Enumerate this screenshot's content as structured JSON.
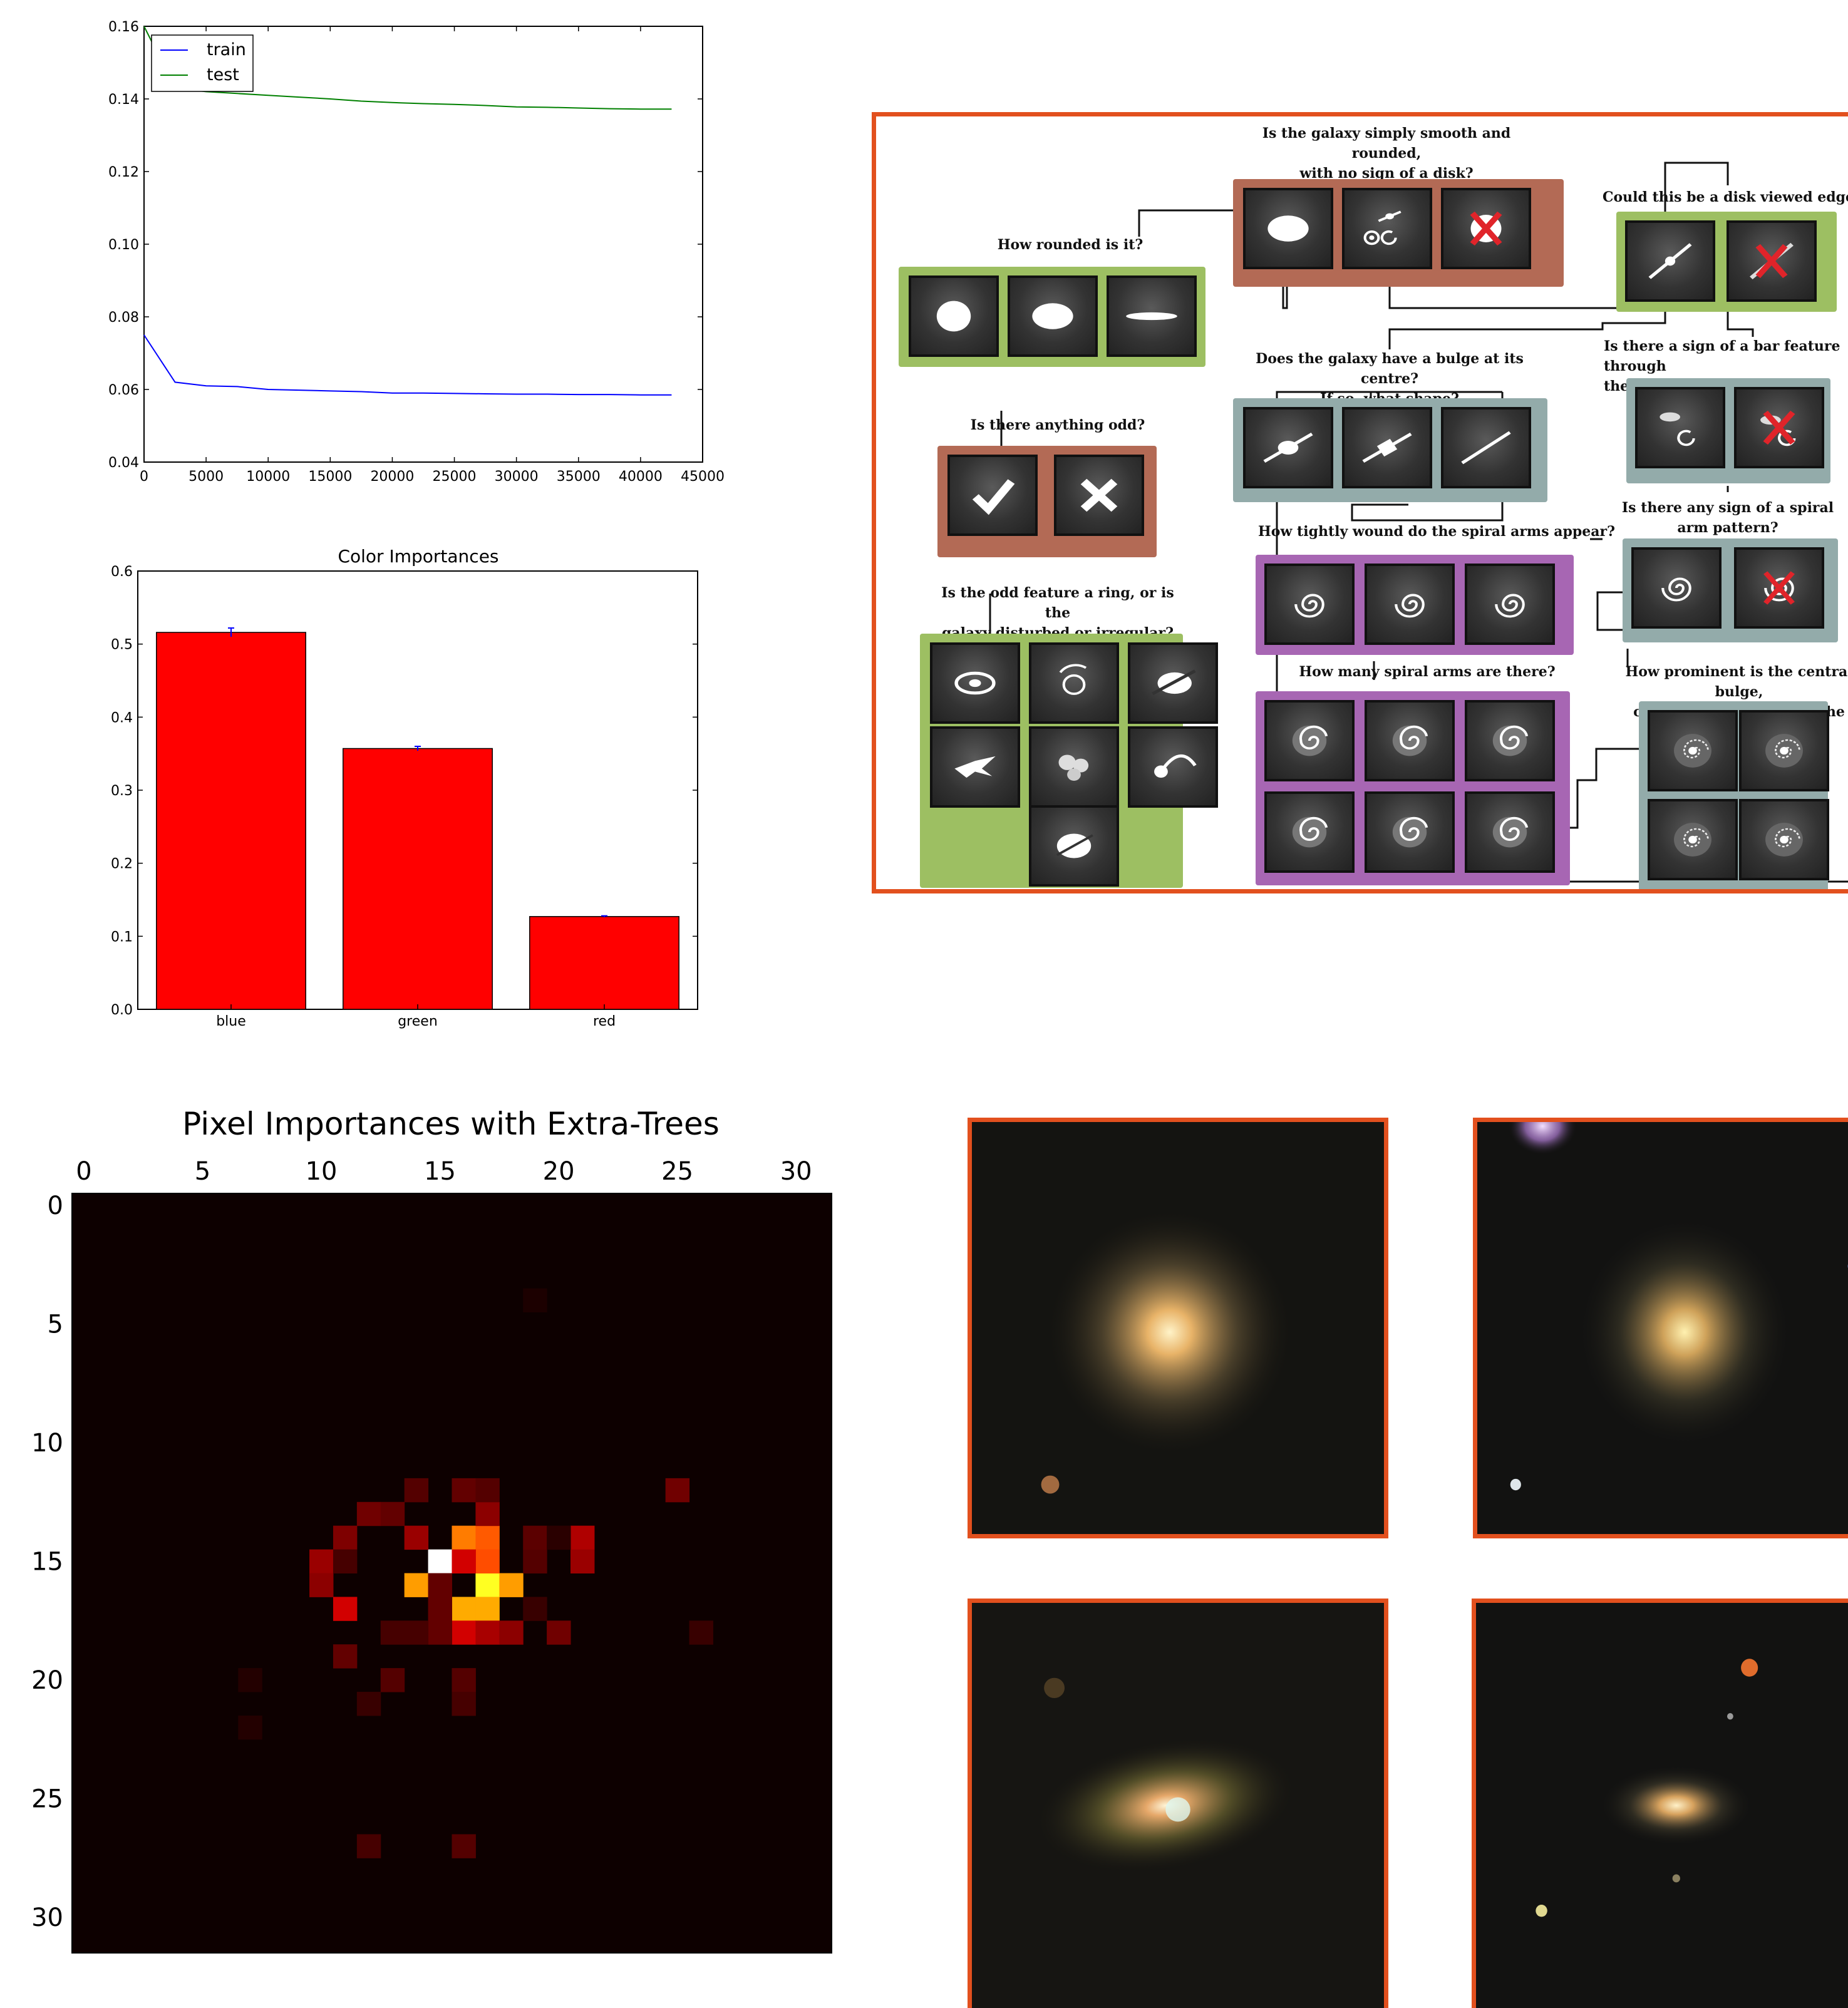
{
  "chart_data": [
    {
      "type": "line",
      "title": "",
      "xlabel": "",
      "ylabel": "",
      "xlim": [
        0,
        45000
      ],
      "ylim": [
        0.04,
        0.16
      ],
      "xticks": [
        "0",
        "5000",
        "10000",
        "15000",
        "20000",
        "25000",
        "30000",
        "35000",
        "40000",
        "45000"
      ],
      "yticks": [
        "0.04",
        "0.06",
        "0.08",
        "0.10",
        "0.12",
        "0.14",
        "0.16"
      ],
      "legend": "top-left",
      "series": [
        {
          "name": "train",
          "color": "#0000ff",
          "x": [
            0,
            2500,
            5000,
            7500,
            10000,
            12500,
            15000,
            17500,
            20000,
            22500,
            25000,
            27500,
            30000,
            32500,
            35000,
            37500,
            40000,
            42500
          ],
          "y": [
            0.075,
            0.062,
            0.061,
            0.0608,
            0.06,
            0.0598,
            0.0596,
            0.0594,
            0.059,
            0.059,
            0.0589,
            0.0588,
            0.0587,
            0.0587,
            0.0586,
            0.0586,
            0.0585,
            0.0585
          ]
        },
        {
          "name": "test",
          "color": "#008000",
          "x": [
            0,
            2500,
            5000,
            7500,
            10000,
            12500,
            15000,
            17500,
            20000,
            22500,
            25000,
            27500,
            30000,
            32500,
            35000,
            37500,
            40000,
            42500
          ],
          "y": [
            0.16,
            0.143,
            0.142,
            0.1415,
            0.141,
            0.1405,
            0.14,
            0.1394,
            0.139,
            0.1387,
            0.1385,
            0.1382,
            0.1378,
            0.1377,
            0.1375,
            0.1373,
            0.1372,
            0.1372
          ]
        }
      ]
    },
    {
      "type": "bar",
      "title": "Color Importances",
      "xlabel": "",
      "ylabel": "",
      "ylim": [
        0,
        0.6
      ],
      "yticks": [
        "0.0",
        "0.1",
        "0.2",
        "0.3",
        "0.4",
        "0.5",
        "0.6"
      ],
      "categories": [
        "blue",
        "green",
        "red"
      ],
      "values": [
        0.516,
        0.357,
        0.127
      ],
      "errors": [
        0.006,
        0.003,
        0.001
      ],
      "bar_color": "#ff0000",
      "error_color": "#0000ff"
    },
    {
      "type": "heatmap",
      "title": "Pixel Importances with Extra-Trees",
      "xticks": [
        "0",
        "5",
        "10",
        "15",
        "20",
        "25",
        "30"
      ],
      "yticks": [
        "0",
        "5",
        "10",
        "15",
        "20",
        "25",
        "30"
      ],
      "grid_size": 32,
      "colormap": "hot",
      "cells": [
        {
          "row": 15,
          "col": 15,
          "v": 1.0
        },
        {
          "row": 16,
          "col": 17,
          "v": 0.78
        },
        {
          "row": 17,
          "col": 16,
          "v": 0.62
        },
        {
          "row": 17,
          "col": 17,
          "v": 0.62
        },
        {
          "row": 16,
          "col": 14,
          "v": 0.6
        },
        {
          "row": 16,
          "col": 18,
          "v": 0.6
        },
        {
          "row": 14,
          "col": 16,
          "v": 0.55
        },
        {
          "row": 14,
          "col": 17,
          "v": 0.5
        },
        {
          "row": 15,
          "col": 17,
          "v": 0.48
        },
        {
          "row": 15,
          "col": 16,
          "v": 0.3
        },
        {
          "row": 18,
          "col": 16,
          "v": 0.3
        },
        {
          "row": 18,
          "col": 17,
          "v": 0.24
        },
        {
          "row": 17,
          "col": 11,
          "v": 0.3
        },
        {
          "row": 14,
          "col": 14,
          "v": 0.22
        },
        {
          "row": 13,
          "col": 17,
          "v": 0.2
        },
        {
          "row": 14,
          "col": 21,
          "v": 0.25
        },
        {
          "row": 15,
          "col": 21,
          "v": 0.22
        },
        {
          "row": 15,
          "col": 10,
          "v": 0.22
        },
        {
          "row": 16,
          "col": 10,
          "v": 0.2
        },
        {
          "row": 14,
          "col": 11,
          "v": 0.18
        },
        {
          "row": 13,
          "col": 12,
          "v": 0.16
        },
        {
          "row": 13,
          "col": 13,
          "v": 0.14
        },
        {
          "row": 12,
          "col": 14,
          "v": 0.12
        },
        {
          "row": 12,
          "col": 16,
          "v": 0.14
        },
        {
          "row": 12,
          "col": 17,
          "v": 0.12
        },
        {
          "row": 12,
          "col": 25,
          "v": 0.16
        },
        {
          "row": 15,
          "col": 19,
          "v": 0.12
        },
        {
          "row": 14,
          "col": 19,
          "v": 0.13
        },
        {
          "row": 16,
          "col": 15,
          "v": 0.14
        },
        {
          "row": 17,
          "col": 15,
          "v": 0.14
        },
        {
          "row": 18,
          "col": 15,
          "v": 0.14
        },
        {
          "row": 18,
          "col": 18,
          "v": 0.2
        },
        {
          "row": 18,
          "col": 20,
          "v": 0.16
        },
        {
          "row": 18,
          "col": 13,
          "v": 0.1
        },
        {
          "row": 18,
          "col": 14,
          "v": 0.1
        },
        {
          "row": 19,
          "col": 11,
          "v": 0.14
        },
        {
          "row": 20,
          "col": 13,
          "v": 0.12
        },
        {
          "row": 20,
          "col": 16,
          "v": 0.12
        },
        {
          "row": 21,
          "col": 16,
          "v": 0.1
        },
        {
          "row": 21,
          "col": 12,
          "v": 0.08
        },
        {
          "row": 18,
          "col": 26,
          "v": 0.08
        },
        {
          "row": 20,
          "col": 7,
          "v": 0.05
        },
        {
          "row": 22,
          "col": 7,
          "v": 0.05
        },
        {
          "row": 27,
          "col": 12,
          "v": 0.1
        },
        {
          "row": 27,
          "col": 16,
          "v": 0.12
        },
        {
          "row": 4,
          "col": 19,
          "v": 0.04
        },
        {
          "row": 15,
          "col": 11,
          "v": 0.1
        },
        {
          "row": 17,
          "col": 19,
          "v": 0.08
        },
        {
          "row": 14,
          "col": 20,
          "v": 0.06
        }
      ]
    }
  ],
  "flowchart": {
    "q_smooth": "Is the galaxy simply smooth and rounded,\nwith no sign of a disk?",
    "q_edgeon": "Could this be a disk viewed edge-on?",
    "q_rounded": "How rounded is it?",
    "q_bulge": "Does the galaxy have a bulge at its centre?\nIf so, what shape?",
    "q_bar": "Is there a sign of a bar feature through\nthe centre of the galaxy?",
    "q_odd": "Is there anything odd?",
    "q_spiral": "Is there any sign of a spiral\narm pattern?",
    "q_wound": "How tightly wound do the spiral arms appear?",
    "q_oddfeature": "Is the odd feature a ring, or is the\ngalaxy disturbed or irregular?",
    "q_arms": "How many spiral arms are there?",
    "q_prominent": "How prominent is the central bulge,\ncompared to the rest of the galaxy?"
  },
  "colors": {
    "panel_border": "#e2501e",
    "box_brown": "#b36a55",
    "box_green": "#9dbf62",
    "box_teal": "#93abaa",
    "box_purple": "#a766b3"
  }
}
